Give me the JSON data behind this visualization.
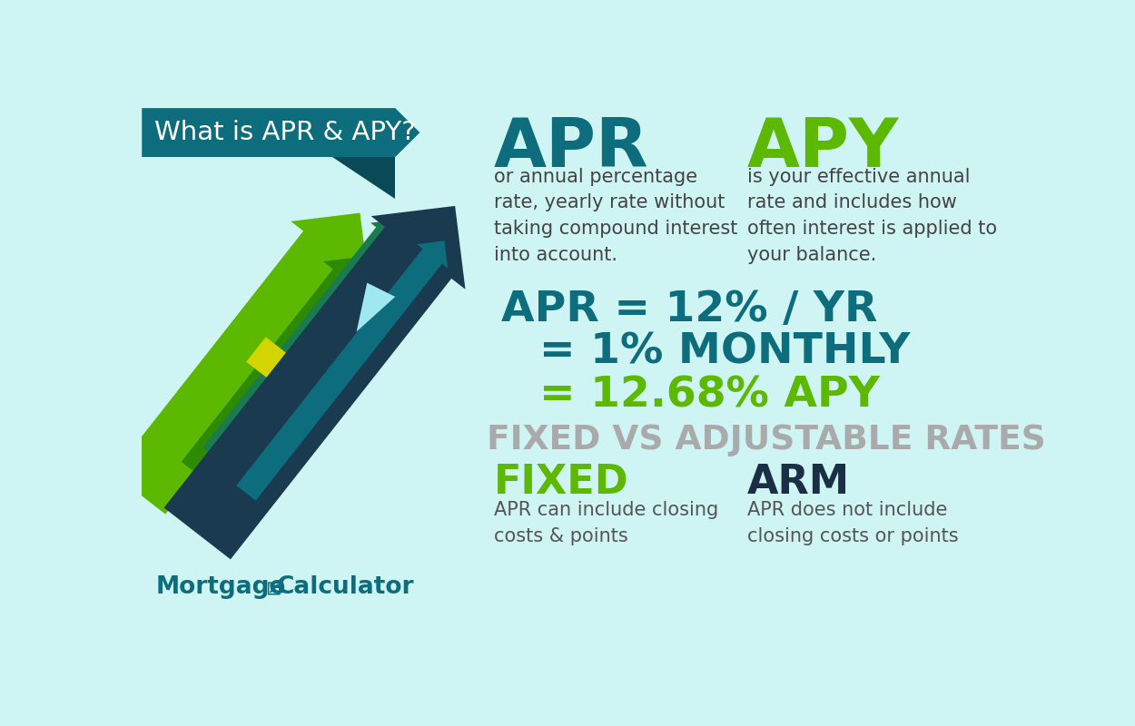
{
  "bg_color": "#cff4f4",
  "title_bg_color": "#0e6d7c",
  "title_text": "What is APR & APY?",
  "title_text_color": "#ffffff",
  "apr_label": "APR",
  "apr_label_color": "#0e6d7c",
  "apy_label": "APY",
  "apy_label_color": "#5cb800",
  "apr_desc": "or annual percentage\nrate, yearly rate without\ntaking compound interest\ninto account.",
  "apy_desc": "is your effective annual\nrate and includes how\noften interest is applied to\nyour balance.",
  "desc_color": "#444444",
  "formula_line1": "APR = 12% / YR",
  "formula_line2": "= 1% MONTHLY",
  "formula_line3": "= 12.68% APY",
  "formula_color1": "#0e6d7c",
  "formula_color2": "#0e6d7c",
  "formula_color3": "#5cb800",
  "section_title": "FIXED VS ADJUSTABLE RATES",
  "section_title_color": "#aaaaaa",
  "fixed_label": "FIXED",
  "fixed_label_color": "#5cb800",
  "arm_label": "ARM",
  "arm_label_color": "#1a2e44",
  "fixed_desc": "APR can include closing\ncosts & points",
  "arm_desc": "APR does not include\nclosing costs or points",
  "sub_desc_color": "#555555",
  "brand_mortgage": "Mortgage",
  "brand_calc": "Calculator",
  "brand_color": "#0e6d7c"
}
